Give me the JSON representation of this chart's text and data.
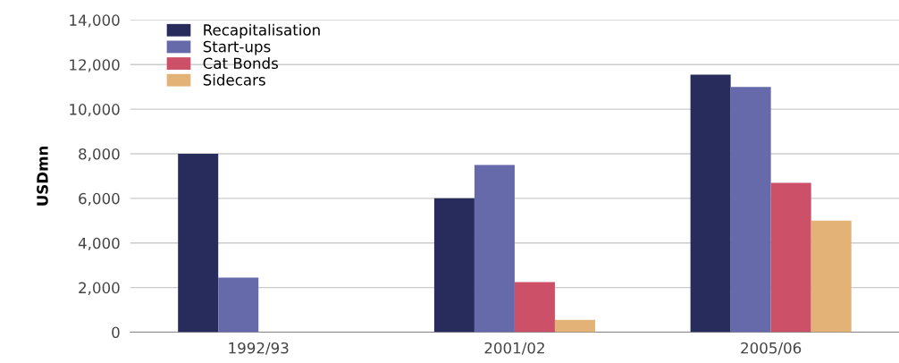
{
  "chart_data": {
    "type": "bar",
    "ylabel": "USDmn",
    "categories": [
      "1992/93",
      "2001/02",
      "2005/06"
    ],
    "series": [
      {
        "name": "Recapitalisation",
        "color": "#282c5c",
        "values": [
          8000,
          6000,
          11550
        ]
      },
      {
        "name": "Start-ups",
        "color": "#666aab",
        "values": [
          2450,
          7500,
          11000
        ]
      },
      {
        "name": "Cat Bonds",
        "color": "#cc5068",
        "values": [
          null,
          2250,
          6700
        ]
      },
      {
        "name": "Sidecars",
        "color": "#e2b276",
        "values": [
          null,
          550,
          5000
        ]
      }
    ],
    "ylim": [
      0,
      14000
    ],
    "yticks": [
      {
        "value": 0,
        "label": "0"
      },
      {
        "value": 2000,
        "label": "2,000"
      },
      {
        "value": 4000,
        "label": "4,000"
      },
      {
        "value": 6000,
        "label": "6,000"
      },
      {
        "value": 8000,
        "label": "8,000"
      },
      {
        "value": 10000,
        "label": "10,000"
      },
      {
        "value": 12000,
        "label": "12,000"
      },
      {
        "value": 14000,
        "label": "14,000"
      }
    ],
    "grid": "y",
    "legend": "top left"
  }
}
